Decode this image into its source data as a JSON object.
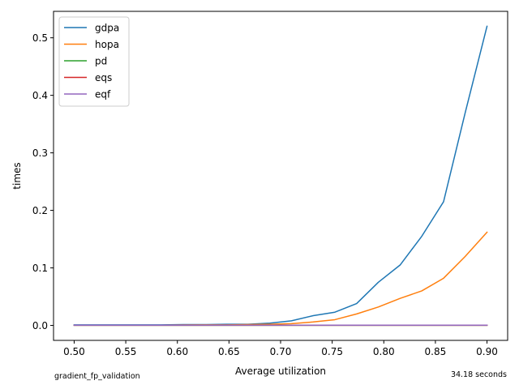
{
  "chart_data": {
    "type": "line",
    "xlabel": "Average utilization",
    "ylabel": "times",
    "xlim": [
      0.48,
      0.92
    ],
    "ylim": [
      -0.026,
      0.546
    ],
    "xticks": [
      0.5,
      0.55,
      0.6,
      0.65,
      0.7,
      0.75,
      0.8,
      0.85,
      0.9
    ],
    "xtick_labels": [
      "0.50",
      "0.55",
      "0.60",
      "0.65",
      "0.70",
      "0.75",
      "0.80",
      "0.85",
      "0.90"
    ],
    "yticks": [
      0.0,
      0.1,
      0.2,
      0.3,
      0.4,
      0.5
    ],
    "ytick_labels": [
      "0.0",
      "0.1",
      "0.2",
      "0.3",
      "0.4",
      "0.5"
    ],
    "grid": false,
    "legend": "top-left",
    "x": [
      0.5,
      0.5206,
      0.5421,
      0.5632,
      0.5842,
      0.6053,
      0.6263,
      0.6474,
      0.6684,
      0.6895,
      0.7105,
      0.7316,
      0.7526,
      0.7737,
      0.7947,
      0.8158,
      0.8368,
      0.8579,
      0.8789,
      0.9
    ],
    "series": [
      {
        "name": "gdpa",
        "color": "#1f77b4",
        "values": [
          0.001,
          0.001,
          0.001,
          0.001,
          0.001,
          0.0015,
          0.0015,
          0.002,
          0.002,
          0.004,
          0.008,
          0.017,
          0.023,
          0.038,
          0.075,
          0.105,
          0.155,
          0.215,
          0.37,
          0.52
        ]
      },
      {
        "name": "hopa",
        "color": "#ff7f0e",
        "values": [
          0.0005,
          0.0005,
          0.0005,
          0.0005,
          0.0005,
          0.0008,
          0.001,
          0.001,
          0.0015,
          0.002,
          0.003,
          0.006,
          0.01,
          0.02,
          0.032,
          0.047,
          0.06,
          0.082,
          0.12,
          0.162
        ]
      },
      {
        "name": "pd",
        "color": "#2ca02c",
        "values": [
          0.0002,
          0.0002,
          0.0002,
          0.0002,
          0.0002,
          0.0002,
          0.0002,
          0.0002,
          0.0002,
          0.0002,
          0.0002,
          0.0002,
          0.0002,
          0.0002,
          0.0002,
          0.0002,
          0.0002,
          0.0002,
          0.0002,
          0.0002
        ]
      },
      {
        "name": "eqs",
        "color": "#d62728",
        "values": [
          0.0003,
          0.0003,
          0.0003,
          0.0003,
          0.0003,
          0.0003,
          0.0003,
          0.0003,
          0.0003,
          0.0003,
          0.0003,
          0.0003,
          0.0003,
          0.0003,
          0.0003,
          0.0003,
          0.0003,
          0.0003,
          0.0003,
          0.0003
        ]
      },
      {
        "name": "eqf",
        "color": "#9467bd",
        "values": [
          0.0005,
          0.0005,
          0.0005,
          0.0005,
          0.0005,
          0.0005,
          0.0005,
          0.0005,
          0.0005,
          0.0005,
          0.0005,
          0.0005,
          0.0005,
          0.0005,
          0.0005,
          0.0005,
          0.0005,
          0.0005,
          0.0005,
          0.0005
        ]
      }
    ]
  },
  "footer": {
    "left": "gradient_fp_validation",
    "right": "34.18 seconds"
  }
}
